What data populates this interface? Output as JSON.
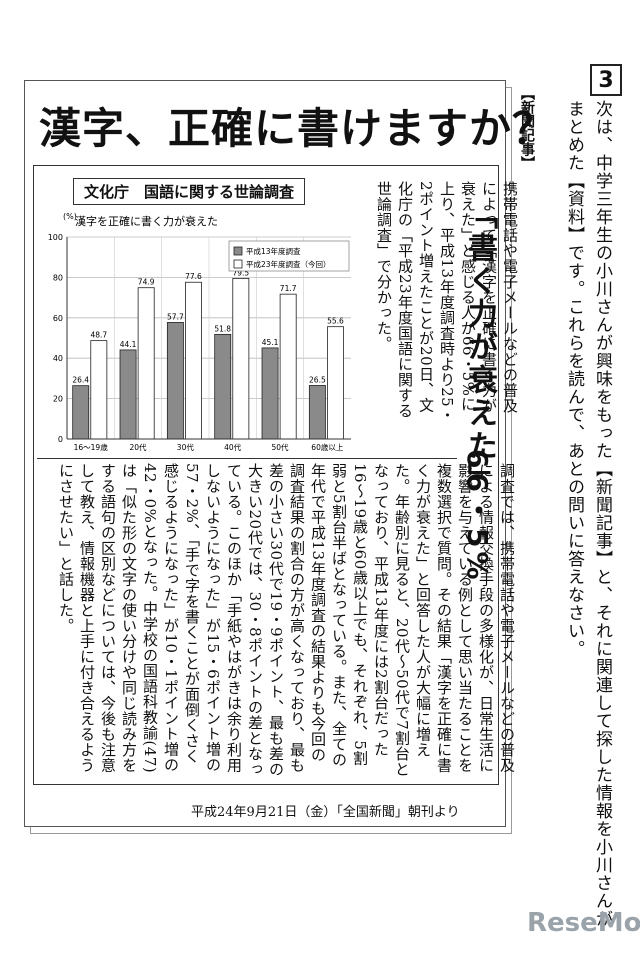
{
  "question": {
    "number": "3",
    "text": "次は、中学三年生の小川さんが興味をもった【新聞記事】と、それに関連して探した情報を小川さんがまとめた【資料】です。これらを読んで、あとの問いに答えなさい。",
    "side_tag": "【新聞記事】"
  },
  "article": {
    "headline": "漢字、正確に書けますか？",
    "survey_label": "文化庁　国語に関する世論調査",
    "big_title": "「書く力が衰えた」",
    "big_pct": "66・5%",
    "lead": "携帯電話や電子メールなどの普及によって「漢字を正確に書く力が衰えた」と感じる人が66・5%に上り、平成13年度調査時より25・2ポイント増えたことが20日、文化庁の「平成23年度国語に関する世論調査」で分かった。",
    "body": "調査では、携帯電話や電子メールなどの普及による情報交換手段の多様化が、日常生活に影響を与えている例として思い当たることを複数選択で質問。その結果「漢字を正確に書く力が衰えた」と回答した人が大幅に増えた。年齢別に見ると、20代〜50代で7割台となっており、平成13年度には2割台だった16〜19歳と60歳以上でも、それぞれ、5割弱と5割台半ばとなっている。また、全ての年代で平成13年度調査の結果よりも今回の調査結果の割合の方が高くなっており、最も差の小さい30代で19・9ポイント、最も差の大きい20代では、30・8ポイントの差となっている。このほか「手紙やはがきは余り利用しないようになった」が15・6ポイント増の57・2%、「手で字を書くことが面倒くさく感じるようになった」が10・1ポイント増の42・0%となった。中学校の国語科教諭(47)は「似た形の文字の使い分けや同じ読み方をする語句の区別などについては、今後も注意して教え、情報機器と上手に付き合えるようにさせたい」と話した。",
    "footer": "平成24年9月21日（金）「全国新聞」朝刊より"
  },
  "chart_data": {
    "type": "bar",
    "title": "漢字を正確に書く力が衰えた",
    "ylabel": "(%)",
    "ylim": [
      0,
      100
    ],
    "yticks": [
      "0",
      "20",
      "40",
      "60",
      "80",
      "100"
    ],
    "categories": [
      "16〜19歳",
      "20代",
      "30代",
      "40代",
      "50代",
      "60歳以上"
    ],
    "series": [
      {
        "name": "平成13年度調査",
        "values": [
          26.4,
          44.1,
          57.7,
          51.8,
          45.1,
          26.5
        ],
        "color": "#8a8a8a"
      },
      {
        "name": "平成23年度調査（今回）",
        "values": [
          48.7,
          74.9,
          77.6,
          79.5,
          71.7,
          55.6
        ],
        "color": "#ffffff"
      }
    ],
    "grid": true,
    "legend": "top-right"
  },
  "logo": {
    "text": "ReseMom"
  }
}
